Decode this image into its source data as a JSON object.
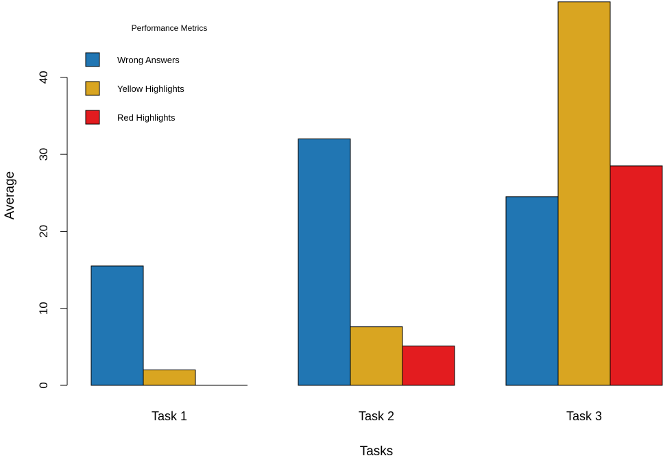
{
  "chart_data": {
    "type": "bar",
    "title": "",
    "xlabel": "Tasks",
    "ylabel": "Average",
    "categories": [
      "Task 1",
      "Task 2",
      "Task 3"
    ],
    "series": [
      {
        "name": "Wrong Answers",
        "color": "#2176b3",
        "values": [
          15.5,
          32.0,
          24.5
        ]
      },
      {
        "name": "Yellow Highlights",
        "color": "#d9a521",
        "values": [
          2.0,
          7.6,
          49.8
        ]
      },
      {
        "name": "Red Highlights",
        "color": "#e31c1f",
        "values": [
          0,
          5.1,
          28.5
        ]
      }
    ],
    "yticks": [
      0,
      10,
      20,
      30,
      40
    ],
    "ylim": [
      0,
      49.8
    ],
    "legend": {
      "title": "Performance Metrics",
      "placement": "top-left"
    },
    "grid": false
  }
}
